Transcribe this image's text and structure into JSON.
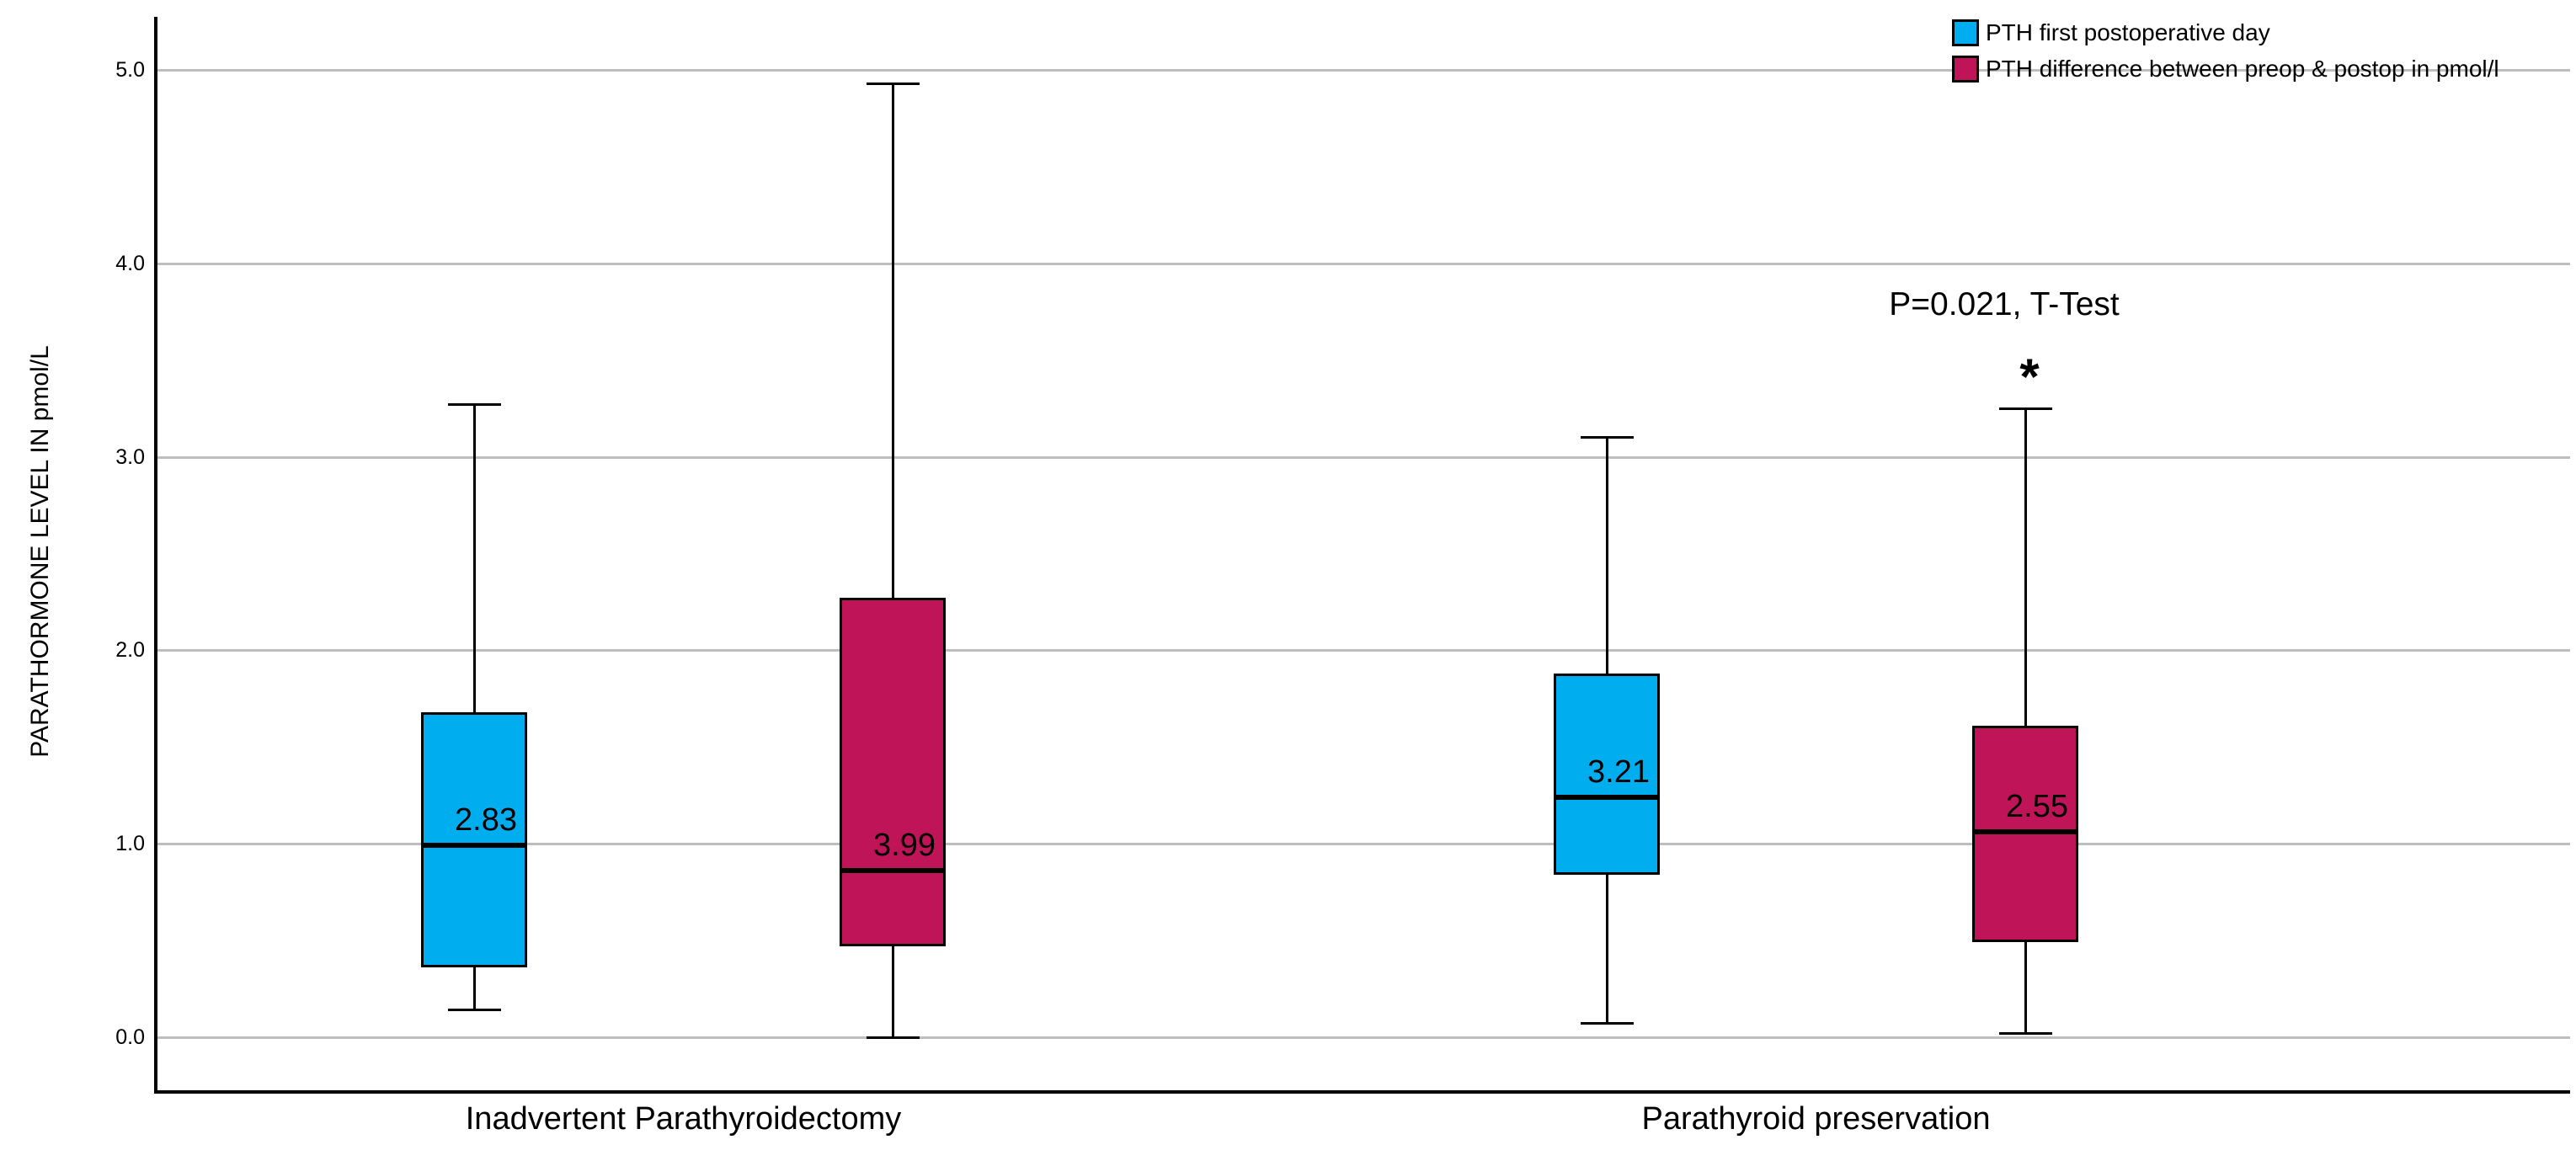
{
  "chart_data": {
    "type": "boxplot",
    "title": "",
    "ylabel": "PARATHORMONE LEVEL IN pmol/L",
    "xlabel": "",
    "ylim": [
      0.0,
      5.0
    ],
    "yticks": [
      0.0,
      1.0,
      2.0,
      3.0,
      4.0,
      5.0
    ],
    "ytick_labels": [
      "0.0",
      "1.0",
      "2.0",
      "3.0",
      "4.0",
      "5.0"
    ],
    "grid": true,
    "legend_position": "top-right",
    "categories": [
      "Inadvertent Parathyroidectomy",
      "Parathyroid preservation"
    ],
    "series": [
      {
        "name": "PTH first postoperative day",
        "color": "#00AEEF",
        "boxes": [
          {
            "category": "Inadvertent Parathyroidectomy",
            "whisker_min": 0.14,
            "q1": 0.36,
            "median": 0.99,
            "q3": 1.68,
            "whisker_max": 3.27,
            "value_label": "2.83"
          },
          {
            "category": "Parathyroid preservation",
            "whisker_min": 0.07,
            "q1": 0.84,
            "median": 1.24,
            "q3": 1.88,
            "whisker_max": 3.1,
            "value_label": "3.21"
          }
        ]
      },
      {
        "name": "PTH difference between preop & postop in pmol/l",
        "color": "#C01459",
        "boxes": [
          {
            "category": "Inadvertent Parathyroidectomy",
            "whisker_min": 0.0,
            "q1": 0.47,
            "median": 0.86,
            "q3": 2.27,
            "whisker_max": 4.93,
            "value_label": "3.99"
          },
          {
            "category": "Parathyroid preservation",
            "whisker_min": 0.02,
            "q1": 0.49,
            "median": 1.06,
            "q3": 1.61,
            "whisker_max": 3.25,
            "value_label": "2.55"
          }
        ]
      }
    ],
    "annotation": {
      "text": "P=0.021, T-Test",
      "marker": "*",
      "applies_to": "Parathyroid preservation / PTH difference between preop & postop in pmol/l"
    }
  },
  "colors": {
    "axis": "#000000",
    "gridline": "#BEBEBE",
    "background": "#FFFFFF",
    "text": "#000000"
  }
}
